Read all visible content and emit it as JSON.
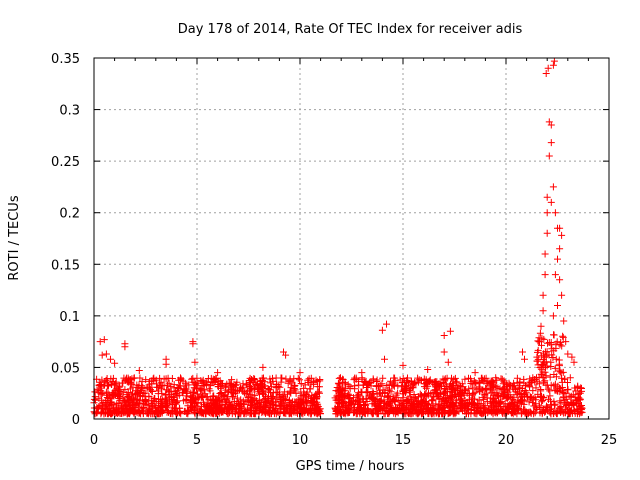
{
  "chart_data": {
    "type": "scatter",
    "title": "Day 178 of 2014, Rate Of TEC Index for receiver adis",
    "xlabel": "GPS time / hours",
    "ylabel": "ROTI / TECUs",
    "xlim": [
      0,
      25
    ],
    "ylim": [
      0,
      0.35
    ],
    "xticks": [
      0,
      5,
      10,
      15,
      20,
      25
    ],
    "xtick_labels": [
      "0",
      "5",
      "10",
      "15",
      "20",
      "25"
    ],
    "yticks": [
      0,
      0.05,
      0.1,
      0.15,
      0.2,
      0.25,
      0.3,
      0.35
    ],
    "ytick_labels": [
      "0",
      "0.05",
      "0.1",
      "0.15",
      "0.2",
      "0.25",
      "0.3",
      "0.35"
    ],
    "grid": true,
    "marker": "+",
    "color": "#ff0000",
    "series": [
      {
        "name": "ROTI",
        "data_gaps_hours": [
          [
            11.0,
            11.7
          ]
        ],
        "data_range_hours": [
          0.0,
          23.7
        ],
        "typical_band": [
          0.005,
          0.04
        ],
        "points": [
          [
            0.3,
            0.075
          ],
          [
            0.5,
            0.077
          ],
          [
            0.4,
            0.062
          ],
          [
            0.6,
            0.063
          ],
          [
            0.8,
            0.058
          ],
          [
            1.0,
            0.054
          ],
          [
            1.5,
            0.073
          ],
          [
            1.5,
            0.07
          ],
          [
            2.2,
            0.047
          ],
          [
            3.5,
            0.058
          ],
          [
            3.5,
            0.053
          ],
          [
            4.8,
            0.075
          ],
          [
            4.8,
            0.073
          ],
          [
            4.9,
            0.055
          ],
          [
            6.0,
            0.045
          ],
          [
            8.2,
            0.05
          ],
          [
            9.2,
            0.065
          ],
          [
            9.3,
            0.062
          ],
          [
            10.0,
            0.045
          ],
          [
            13.0,
            0.045
          ],
          [
            14.0,
            0.086
          ],
          [
            14.2,
            0.092
          ],
          [
            14.1,
            0.058
          ],
          [
            15.0,
            0.052
          ],
          [
            16.2,
            0.048
          ],
          [
            17.0,
            0.081
          ],
          [
            17.3,
            0.085
          ],
          [
            17.0,
            0.065
          ],
          [
            17.2,
            0.055
          ],
          [
            18.5,
            0.045
          ],
          [
            19.5,
            0.04
          ],
          [
            20.8,
            0.065
          ],
          [
            20.9,
            0.058
          ],
          [
            21.5,
            0.06
          ],
          [
            21.6,
            0.075
          ],
          [
            21.7,
            0.09
          ],
          [
            21.8,
            0.105
          ],
          [
            21.8,
            0.12
          ],
          [
            21.9,
            0.14
          ],
          [
            21.9,
            0.16
          ],
          [
            22.0,
            0.18
          ],
          [
            22.0,
            0.2
          ],
          [
            22.0,
            0.215
          ],
          [
            21.95,
            0.335
          ],
          [
            22.05,
            0.34
          ],
          [
            22.3,
            0.343
          ],
          [
            22.35,
            0.347
          ],
          [
            22.1,
            0.288
          ],
          [
            22.2,
            0.285
          ],
          [
            22.2,
            0.268
          ],
          [
            22.1,
            0.255
          ],
          [
            22.3,
            0.225
          ],
          [
            22.2,
            0.21
          ],
          [
            22.4,
            0.2
          ],
          [
            22.5,
            0.185
          ],
          [
            22.6,
            0.185
          ],
          [
            22.7,
            0.178
          ],
          [
            22.6,
            0.165
          ],
          [
            22.5,
            0.155
          ],
          [
            22.4,
            0.14
          ],
          [
            22.6,
            0.135
          ],
          [
            22.7,
            0.12
          ],
          [
            22.5,
            0.11
          ],
          [
            22.3,
            0.1
          ],
          [
            22.8,
            0.095
          ],
          [
            22.9,
            0.075
          ],
          [
            23.0,
            0.063
          ],
          [
            23.2,
            0.06
          ],
          [
            23.3,
            0.055
          ]
        ]
      }
    ]
  }
}
